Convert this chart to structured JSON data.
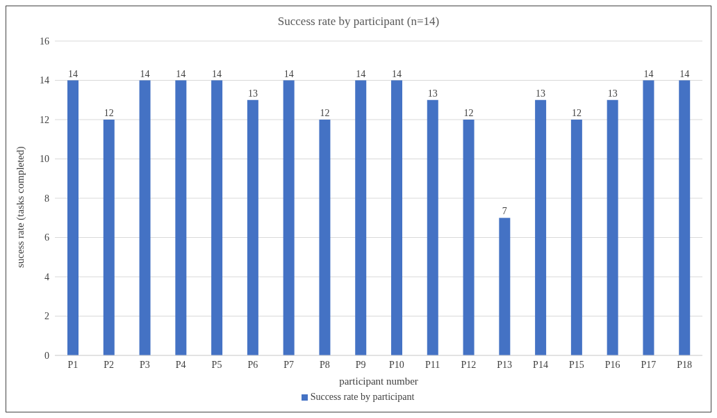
{
  "chart_data": {
    "type": "bar",
    "title": "Success rate by participant (n=14)",
    "xlabel": "participant number",
    "ylabel": "sucess rate (tasks completed)",
    "categories": [
      "P1",
      "P2",
      "P3",
      "P4",
      "P5",
      "P6",
      "P7",
      "P8",
      "P9",
      "P10",
      "P11",
      "P12",
      "P13",
      "P14",
      "P15",
      "P16",
      "P17",
      "P18"
    ],
    "series": [
      {
        "name": "Success rate by participant",
        "color": "#4472c4",
        "values": [
          14,
          12,
          14,
          14,
          14,
          13,
          14,
          12,
          14,
          14,
          13,
          12,
          7,
          13,
          12,
          13,
          14,
          14
        ]
      }
    ],
    "ylim": [
      0,
      16
    ],
    "yticks": [
      0,
      2,
      4,
      6,
      8,
      10,
      12,
      14,
      16
    ],
    "grid": "y",
    "legend": "bottom",
    "data_labels": true
  }
}
